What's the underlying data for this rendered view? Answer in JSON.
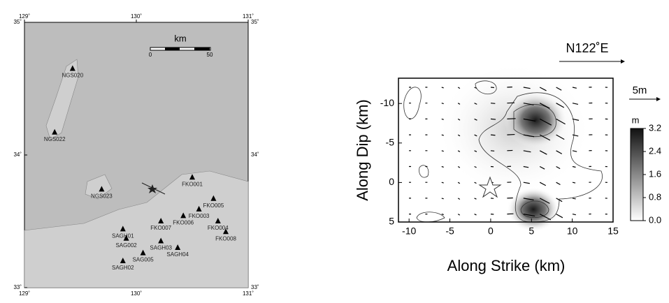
{
  "map": {
    "lon_labels": [
      {
        "value": 129,
        "label": "129˚"
      },
      {
        "value": 130,
        "label": "130˚"
      },
      {
        "value": 131,
        "label": "131˚"
      }
    ],
    "lat_labels": [
      {
        "value": 35,
        "label": "35˚"
      },
      {
        "value": 34,
        "label": "34˚"
      },
      {
        "value": 33,
        "label": "33˚"
      }
    ],
    "lon_range": [
      129,
      131
    ],
    "lat_range": [
      33,
      35
    ],
    "scale": {
      "unit": "km",
      "start": "0",
      "end": "50"
    },
    "stations": [
      {
        "label": "NGS020",
        "lon": 129.43,
        "lat": 34.65
      },
      {
        "label": "NGS022",
        "lon": 129.27,
        "lat": 34.17
      },
      {
        "label": "NGS023",
        "lon": 129.69,
        "lat": 33.74
      },
      {
        "label": "FKO001",
        "lon": 130.5,
        "lat": 33.83
      },
      {
        "label": "FKO005",
        "lon": 130.69,
        "lat": 33.67
      },
      {
        "label": "FKO003",
        "lon": 130.56,
        "lat": 33.59
      },
      {
        "label": "FKO004",
        "lon": 130.73,
        "lat": 33.5
      },
      {
        "label": "FKO008",
        "lon": 130.8,
        "lat": 33.42
      },
      {
        "label": "FKO006",
        "lon": 130.42,
        "lat": 33.54
      },
      {
        "label": "FKO007",
        "lon": 130.22,
        "lat": 33.5
      },
      {
        "label": "SAGH01",
        "lon": 129.88,
        "lat": 33.44
      },
      {
        "label": "SAG002",
        "lon": 129.91,
        "lat": 33.37
      },
      {
        "label": "SAGH03",
        "lon": 130.22,
        "lat": 33.35
      },
      {
        "label": "SAGH04",
        "lon": 130.37,
        "lat": 33.3
      },
      {
        "label": "SAG005",
        "lon": 130.06,
        "lat": 33.26
      },
      {
        "label": "SAGH02",
        "lon": 129.88,
        "lat": 33.2
      }
    ]
  },
  "slip": {
    "direction_label": "N122˚E",
    "vector_scale_label": "5m",
    "x_label": "Along Strike (km)",
    "y_label": "Along Dip (km)",
    "xlim": [
      -11.3,
      15
    ],
    "ylim": [
      -13.2,
      5
    ],
    "xticks": [
      -10,
      -5,
      0,
      5,
      10,
      15
    ],
    "yticks": [
      -10,
      -5,
      0,
      5
    ],
    "colorbar": {
      "unit": "m",
      "range": [
        0,
        3.2
      ],
      "ticks": [
        {
          "value": 3.2,
          "label": "3.2"
        },
        {
          "value": 2.4,
          "label": "2.4"
        },
        {
          "value": 1.6,
          "label": "1.6"
        },
        {
          "value": 0.8,
          "label": "0.8"
        },
        {
          "value": 0,
          "label": "0.0"
        }
      ]
    }
  }
}
